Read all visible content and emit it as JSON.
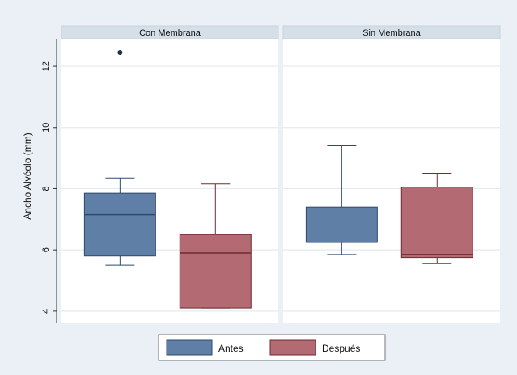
{
  "chart_data": {
    "type": "boxplot",
    "ylabel": "Ancho Alvéolo (mm)",
    "ylim": [
      3.6,
      12.9
    ],
    "yticks": [
      4,
      6,
      8,
      10,
      12
    ],
    "grid": true,
    "legend_position": "bottom",
    "series": [
      {
        "name": "Antes",
        "color": "#5f7fa6",
        "stroke": "#2e4a6b"
      },
      {
        "name": "Después",
        "color": "#b46a73",
        "stroke": "#6e2b33"
      }
    ],
    "panels": [
      {
        "title": "Con Membrana",
        "boxes": [
          {
            "series": "Antes",
            "whisker_low": 5.5,
            "q1": 5.8,
            "median": 7.15,
            "q3": 7.85,
            "whisker_high": 8.35,
            "outliers": [
              12.45
            ]
          },
          {
            "series": "Después",
            "whisker_low": 4.1,
            "q1": 4.1,
            "median": 5.9,
            "q3": 6.5,
            "whisker_high": 8.15,
            "outliers": []
          }
        ]
      },
      {
        "title": "Sin Membrana",
        "boxes": [
          {
            "series": "Antes",
            "whisker_low": 5.85,
            "q1": 6.25,
            "median": 6.25,
            "q3": 7.4,
            "whisker_high": 9.4,
            "outliers": []
          },
          {
            "series": "Después",
            "whisker_low": 5.55,
            "q1": 5.75,
            "median": 5.85,
            "q3": 8.05,
            "whisker_high": 8.5,
            "outliers": []
          }
        ]
      }
    ]
  }
}
